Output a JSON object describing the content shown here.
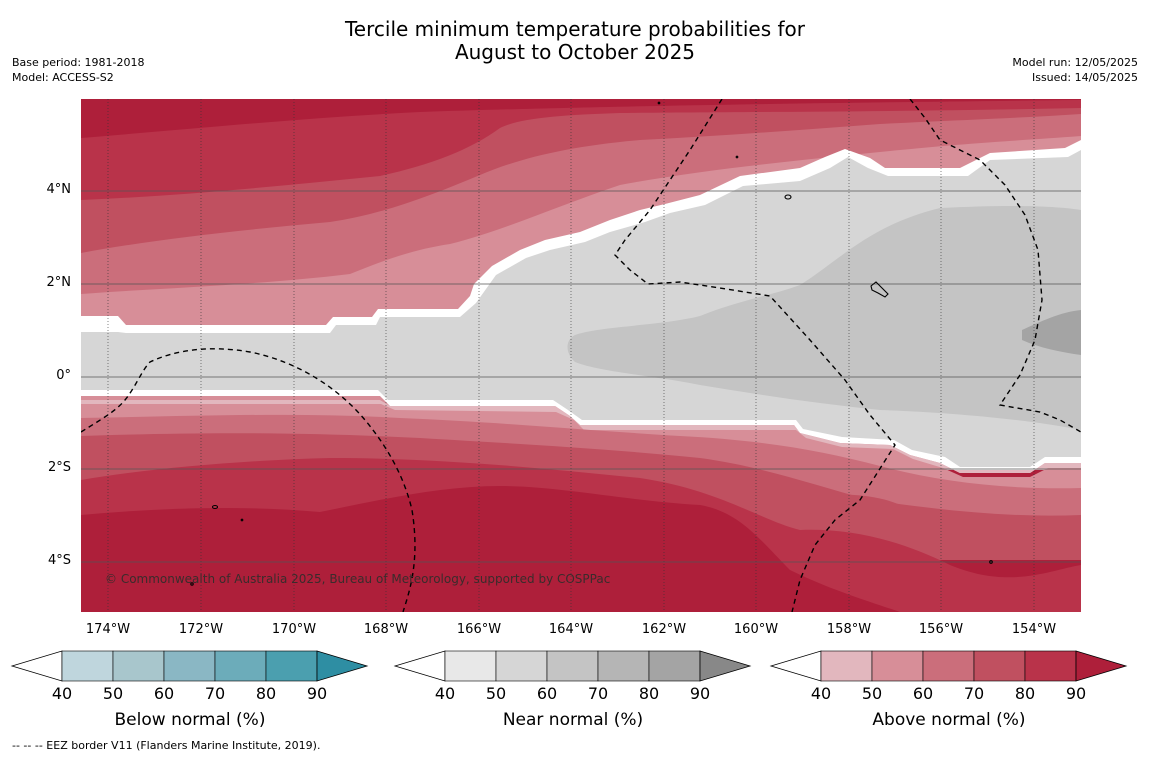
{
  "header": {
    "title_line1": "Tercile minimum temperature probabilities for",
    "title_line2": "August to October 2025",
    "base_period": "Base period: 1981-2018",
    "model": "Model: ACCESS-S2",
    "model_run": "Model run: 12/05/2025",
    "issued": "Issued: 14/05/2025"
  },
  "map": {
    "lat_labels": [
      "4°N",
      "2°N",
      "0°",
      "2°S",
      "4°S"
    ],
    "lon_labels": [
      "174°W",
      "172°W",
      "170°W",
      "168°W",
      "166°W",
      "164°W",
      "162°W",
      "160°W",
      "158°W",
      "156°W",
      "154°W"
    ],
    "credit": "© Commonwealth of Australia 2025, Bureau of Meteorology, supported by COSPPac",
    "colors": {
      "above": [
        "#e2b7be",
        "#d78e98",
        "#cb6e7b",
        "#c05060",
        "#b9334a",
        "#ae1f3a"
      ],
      "near": [
        "#e8e8e8",
        "#d6d6d6",
        "#c4c4c4",
        "#b5b5b5",
        "#a4a4a4",
        "#888888"
      ],
      "below": [
        "#bfd6dd",
        "#a8c6cc",
        "#8ab7c4",
        "#6cacba",
        "#4b9faf",
        "#2e8ea3"
      ]
    }
  },
  "colorbars": [
    {
      "id": "below",
      "label": "Below normal (%)",
      "ticks": [
        "40",
        "50",
        "60",
        "70",
        "80",
        "90"
      ]
    },
    {
      "id": "near",
      "label": "Near normal (%)",
      "ticks": [
        "40",
        "50",
        "60",
        "70",
        "80",
        "90"
      ]
    },
    {
      "id": "above",
      "label": "Above normal (%)",
      "ticks": [
        "40",
        "50",
        "60",
        "70",
        "80",
        "90"
      ]
    }
  ],
  "footnote": "--  --  -- EEZ border V11 (Flanders Marine Institute, 2019)."
}
